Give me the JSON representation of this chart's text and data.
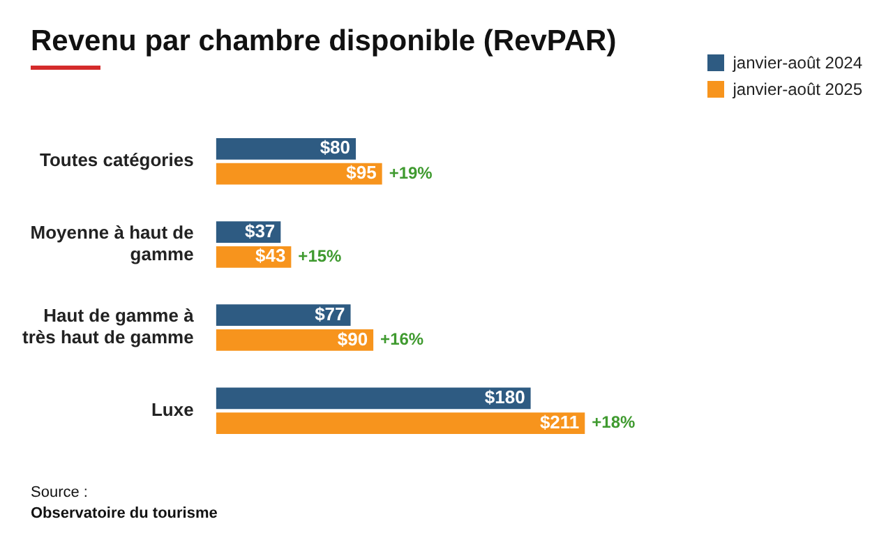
{
  "chart_data": {
    "type": "bar",
    "orientation": "horizontal",
    "title": "Revenu par chambre disponible (RevPAR)",
    "categories": [
      "Toutes catégories",
      "Moyenne à haut de gamme",
      "Haut de gamme à très haut de gamme",
      "Luxe"
    ],
    "series": [
      {
        "name": "janvier-août 2024",
        "color": "#2e5b82",
        "values": [
          80,
          37,
          77,
          180
        ],
        "value_labels": [
          "$80",
          "$37",
          "$77",
          "$180"
        ]
      },
      {
        "name": "janvier-août 2025",
        "color": "#f7941d",
        "values": [
          95,
          43,
          90,
          211
        ],
        "value_labels": [
          "$95",
          "$43",
          "$90",
          "$211"
        ]
      }
    ],
    "legend": "top right",
    "annotations": [
      {
        "text": "+19%",
        "x": 95,
        "y": "Toutes catégories"
      },
      {
        "text": "+15%",
        "x": 43,
        "y": "Moyenne à haut de gamme"
      },
      {
        "text": "+16%",
        "x": 90,
        "y": "Haut de gamme à très haut de gamme"
      },
      {
        "text": "+18%",
        "x": 211,
        "y": "Luxe"
      },
      "Source :",
      "Observatoire du tourisme"
    ]
  }
}
